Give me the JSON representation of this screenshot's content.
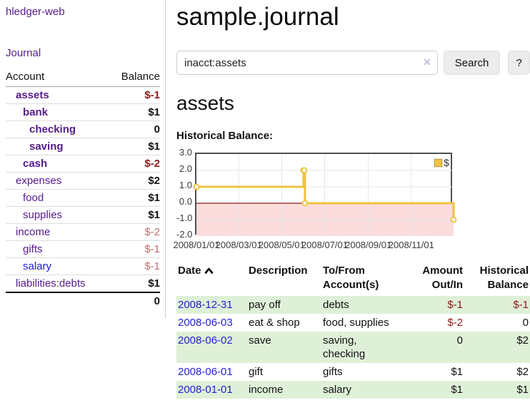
{
  "app": {
    "title": "hledger-web"
  },
  "nav": {
    "journal": "Journal"
  },
  "sidebar_accounts": {
    "col_account": "Account",
    "col_balance": "Balance",
    "rows": [
      {
        "name": "assets",
        "balance": "$-1"
      },
      {
        "name": "bank",
        "balance": "$1"
      },
      {
        "name": "checking",
        "balance": "0"
      },
      {
        "name": "saving",
        "balance": "$1"
      },
      {
        "name": "cash",
        "balance": "$-2"
      },
      {
        "name": "expenses",
        "balance": "$2"
      },
      {
        "name": "food",
        "balance": "$1"
      },
      {
        "name": "supplies",
        "balance": "$1"
      },
      {
        "name": "income",
        "balance": "$-2"
      },
      {
        "name": "gifts",
        "balance": "$-1"
      },
      {
        "name": "salary",
        "balance": "$-1"
      },
      {
        "name": "liabilities:debts",
        "balance": "$1"
      }
    ],
    "total": "0"
  },
  "main": {
    "title": "sample.journal",
    "search": {
      "value": "inacct:assets",
      "clear": "✕",
      "button": "Search",
      "help": "?"
    },
    "account_heading": "assets",
    "chart_label": "Historical Balance:"
  },
  "chart_data": {
    "type": "line",
    "step": true,
    "title": "Historical Balance",
    "xlabel": "",
    "ylabel": "",
    "ylim": [
      -2,
      3
    ],
    "grid": true,
    "series": [
      {
        "name": "$",
        "color": "#edc240",
        "points": [
          {
            "date": "2008/01/01",
            "x": 0.0,
            "y": 1
          },
          {
            "date": "2008/06/01",
            "x": 0.4164,
            "y": 2
          },
          {
            "date": "2008/06/02",
            "x": 0.4192,
            "y": 2
          },
          {
            "date": "2008/06/03",
            "x": 0.4219,
            "y": 0
          },
          {
            "date": "2008/12/31",
            "x": 1.0,
            "y": -1
          }
        ]
      }
    ],
    "yticks": [
      {
        "label": "3.0",
        "v": 3
      },
      {
        "label": "2.0",
        "v": 2
      },
      {
        "label": "1.0",
        "v": 1
      },
      {
        "label": "0.0",
        "v": 0
      },
      {
        "label": "-1.0",
        "v": -1
      },
      {
        "label": "-2.0",
        "v": -2
      }
    ],
    "xticks": [
      {
        "label": "2008/01/01",
        "x": 0.0
      },
      {
        "label": "2008/03/01",
        "x": 0.1644
      },
      {
        "label": "2008/05/01",
        "x": 0.3315
      },
      {
        "label": "2008/07/01",
        "x": 0.4986
      },
      {
        "label": "2008/09/01",
        "x": 0.6685
      },
      {
        "label": "2008/11/01",
        "x": 0.8356
      }
    ],
    "legend": {
      "label": "$",
      "position": "top-right"
    },
    "colors": {
      "line": "#edc240",
      "marker_fill": "#ffffff",
      "negative_fill": "#fbdcdc",
      "zero_line": "#8d1a1a",
      "grid": "#e6e6e6",
      "border": "#4f4f4f"
    }
  },
  "register": {
    "headers": {
      "date": "Date",
      "description": "Description",
      "tofrom": "To/From Account(s)",
      "amount": "Amount Out/In",
      "balance": "Historical Balance"
    },
    "rows": [
      {
        "date": "2008-12-31",
        "description": "pay off",
        "accounts": "debts",
        "amount": "$-1",
        "balance": "$-1"
      },
      {
        "date": "2008-06-03",
        "description": "eat & shop",
        "accounts": "food, supplies",
        "amount": "$-2",
        "balance": "0"
      },
      {
        "date": "2008-06-02",
        "description": "save",
        "accounts": "saving,\nchecking",
        "amount": "0",
        "balance": "$2"
      },
      {
        "date": "2008-06-01",
        "description": "gift",
        "accounts": "gifts",
        "amount": "$1",
        "balance": "$2"
      },
      {
        "date": "2008-01-01",
        "description": "income",
        "accounts": "salary",
        "amount": "$1",
        "balance": "$1"
      }
    ]
  }
}
